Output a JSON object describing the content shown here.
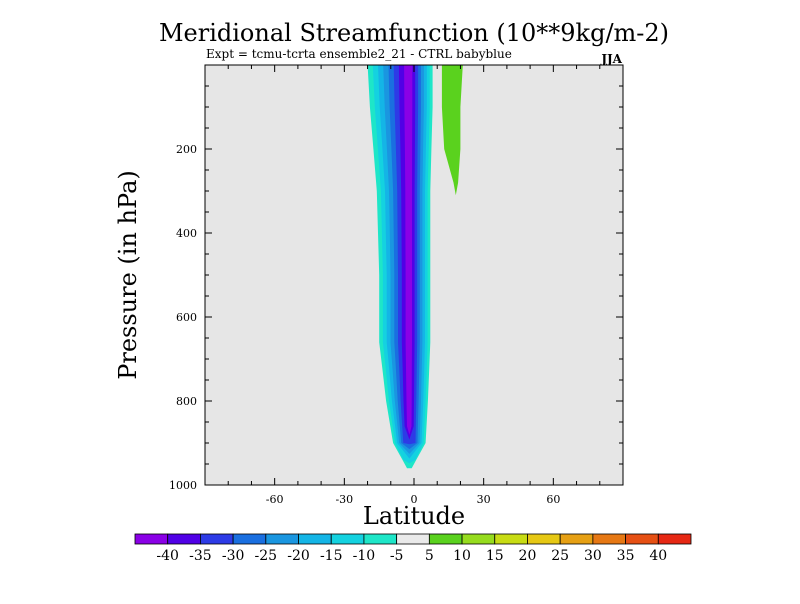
{
  "chart_data": {
    "type": "contour",
    "title": "Meridional Streamfunction (10**9kg/m-2)",
    "subtitle": "Expt = tcmu-tcrta  ensemble2_21 - CTRL babyblue",
    "season": "JJA",
    "xlabel": "Latitude",
    "ylabel": "Pressure (in hPa)",
    "xlim": [
      -90,
      90
    ],
    "ylim": [
      1000,
      0
    ],
    "x_ticks": [
      -60,
      -30,
      0,
      30,
      60
    ],
    "x_tick_labels": [
      "-60",
      "-30",
      "0",
      "30",
      "60"
    ],
    "y_ticks": [
      200,
      400,
      600,
      800,
      1000
    ],
    "y_tick_labels": [
      "200",
      "400",
      "600",
      "800",
      "1000"
    ],
    "background_color": "#e6e6e6",
    "features": [
      {
        "name": "negative-cell",
        "fill_levels": [
          -5,
          -10,
          -15,
          -20,
          -25,
          -30,
          -35,
          -40
        ],
        "center_lat": -2,
        "top_pressure": 0,
        "bottom_pressure": 960,
        "left_edge": [
          [
            0,
            -20
          ],
          [
            100,
            -19
          ],
          [
            300,
            -16
          ],
          [
            500,
            -15
          ],
          [
            660,
            -15
          ],
          [
            800,
            -12
          ],
          [
            900,
            -9
          ],
          [
            960,
            -3
          ]
        ],
        "right_edge": [
          [
            0,
            8
          ],
          [
            100,
            8
          ],
          [
            300,
            7
          ],
          [
            500,
            7
          ],
          [
            660,
            7
          ],
          [
            800,
            6
          ],
          [
            900,
            5
          ],
          [
            960,
            -1
          ]
        ]
      },
      {
        "name": "positive-cell",
        "fill_level": 5,
        "top_pressure": 0,
        "bottom_pressure": 310,
        "left_edge": [
          [
            0,
            12
          ],
          [
            100,
            12
          ],
          [
            200,
            13
          ],
          [
            280,
            17
          ],
          [
            310,
            18
          ]
        ],
        "right_edge": [
          [
            0,
            21
          ],
          [
            100,
            20
          ],
          [
            200,
            20
          ],
          [
            280,
            19
          ],
          [
            310,
            18
          ]
        ]
      }
    ],
    "colorbar": {
      "levels": [
        "-40",
        "-35",
        "-30",
        "-25",
        "-20",
        "-15",
        "-10",
        "-5",
        "5",
        "10",
        "15",
        "20",
        "25",
        "30",
        "35",
        "40"
      ],
      "colors": [
        "#8a00e6",
        "#5000e6",
        "#2d3be6",
        "#1a6fe0",
        "#1a96e0",
        "#14b5e6",
        "#14d2e0",
        "#1ee6c8",
        "#eaeaea",
        "#5ad21e",
        "#96dc1e",
        "#c8dc14",
        "#e6c814",
        "#e6a014",
        "#e67814",
        "#e65014",
        "#e62814"
      ]
    }
  }
}
